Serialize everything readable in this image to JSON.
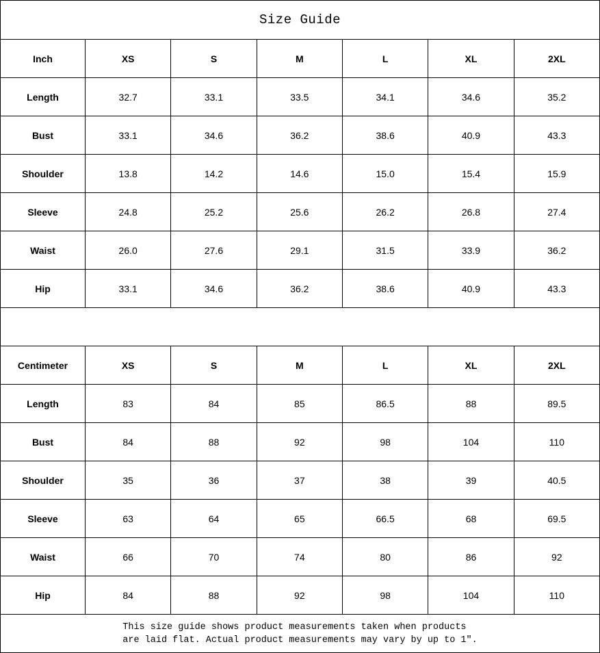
{
  "title": "Size Guide",
  "tables": {
    "inch": {
      "unit_label": "Inch",
      "columns": [
        "XS",
        "S",
        "M",
        "L",
        "XL",
        "2XL"
      ],
      "rows": [
        {
          "label": "Length",
          "values": [
            "32.7",
            "33.1",
            "33.5",
            "34.1",
            "34.6",
            "35.2"
          ]
        },
        {
          "label": "Bust",
          "values": [
            "33.1",
            "34.6",
            "36.2",
            "38.6",
            "40.9",
            "43.3"
          ]
        },
        {
          "label": "Shoulder",
          "values": [
            "13.8",
            "14.2",
            "14.6",
            "15.0",
            "15.4",
            "15.9"
          ]
        },
        {
          "label": "Sleeve",
          "values": [
            "24.8",
            "25.2",
            "25.6",
            "26.2",
            "26.8",
            "27.4"
          ]
        },
        {
          "label": "Waist",
          "values": [
            "26.0",
            "27.6",
            "29.1",
            "31.5",
            "33.9",
            "36.2"
          ]
        },
        {
          "label": "Hip",
          "values": [
            "33.1",
            "34.6",
            "36.2",
            "38.6",
            "40.9",
            "43.3"
          ]
        }
      ]
    },
    "cm": {
      "unit_label": "Centimeter",
      "columns": [
        "XS",
        "S",
        "M",
        "L",
        "XL",
        "2XL"
      ],
      "rows": [
        {
          "label": "Length",
          "values": [
            "83",
            "84",
            "85",
            "86.5",
            "88",
            "89.5"
          ]
        },
        {
          "label": "Bust",
          "values": [
            "84",
            "88",
            "92",
            "98",
            "104",
            "110"
          ]
        },
        {
          "label": "Shoulder",
          "values": [
            "35",
            "36",
            "37",
            "38",
            "39",
            "40.5"
          ]
        },
        {
          "label": "Sleeve",
          "values": [
            "63",
            "64",
            "65",
            "66.5",
            "68",
            "69.5"
          ]
        },
        {
          "label": "Waist",
          "values": [
            "66",
            "70",
            "74",
            "80",
            "86",
            "92"
          ]
        },
        {
          "label": "Hip",
          "values": [
            "84",
            "88",
            "92",
            "98",
            "104",
            "110"
          ]
        }
      ]
    }
  },
  "footer": {
    "line1": "This size guide shows product measurements taken when products",
    "line2": "are laid flat. Actual product measurements may vary by up to 1″."
  },
  "colors": {
    "border": "#000000",
    "background": "#ffffff",
    "text": "#000000"
  }
}
